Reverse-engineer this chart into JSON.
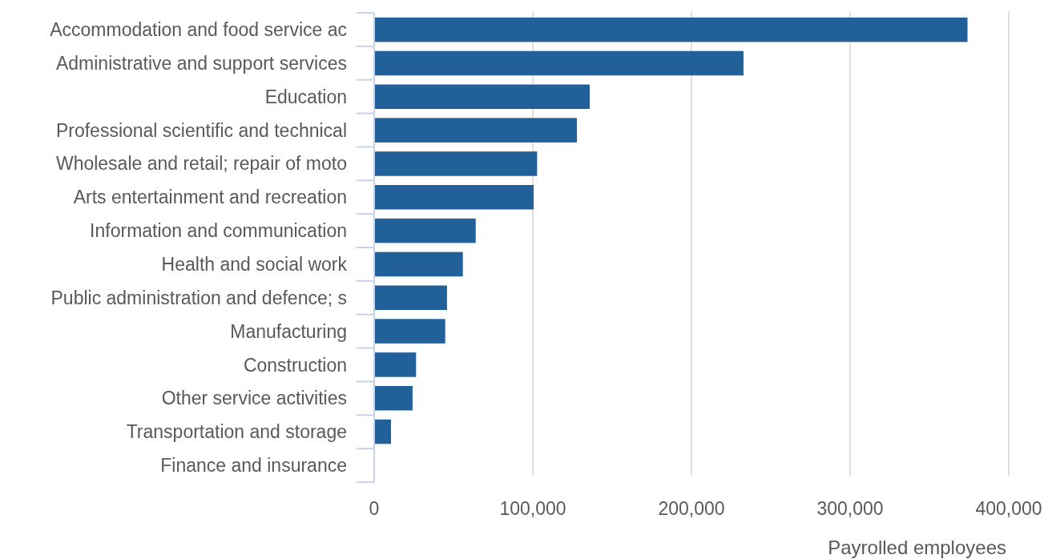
{
  "chart_data": {
    "type": "bar",
    "orientation": "horizontal",
    "xlabel": "Payrolled employees",
    "categories": [
      "Accommodation and food service ac",
      "Administrative and support services",
      "Education",
      "Professional scientific and technical",
      "Wholesale and retail; repair of moto",
      "Arts entertainment and recreation",
      "Information and communication",
      "Health and social work",
      "Public administration and defence; s",
      "Manufacturing",
      "Construction",
      "Other service activities",
      "Transportation and storage",
      "Finance and insurance"
    ],
    "values": [
      374000,
      232800,
      135900,
      127800,
      102700,
      100500,
      64000,
      55900,
      45900,
      44800,
      26400,
      24200,
      10600,
      0
    ],
    "color": "#22609a",
    "xlim": [
      0,
      400000
    ],
    "xticks": [
      {
        "value": 0,
        "label": "0"
      },
      {
        "value": 100000,
        "label": "100,000"
      },
      {
        "value": 200000,
        "label": "200,000"
      },
      {
        "value": 300000,
        "label": "300,000"
      },
      {
        "value": 400000,
        "label": "400,000"
      }
    ],
    "grid": "x"
  }
}
